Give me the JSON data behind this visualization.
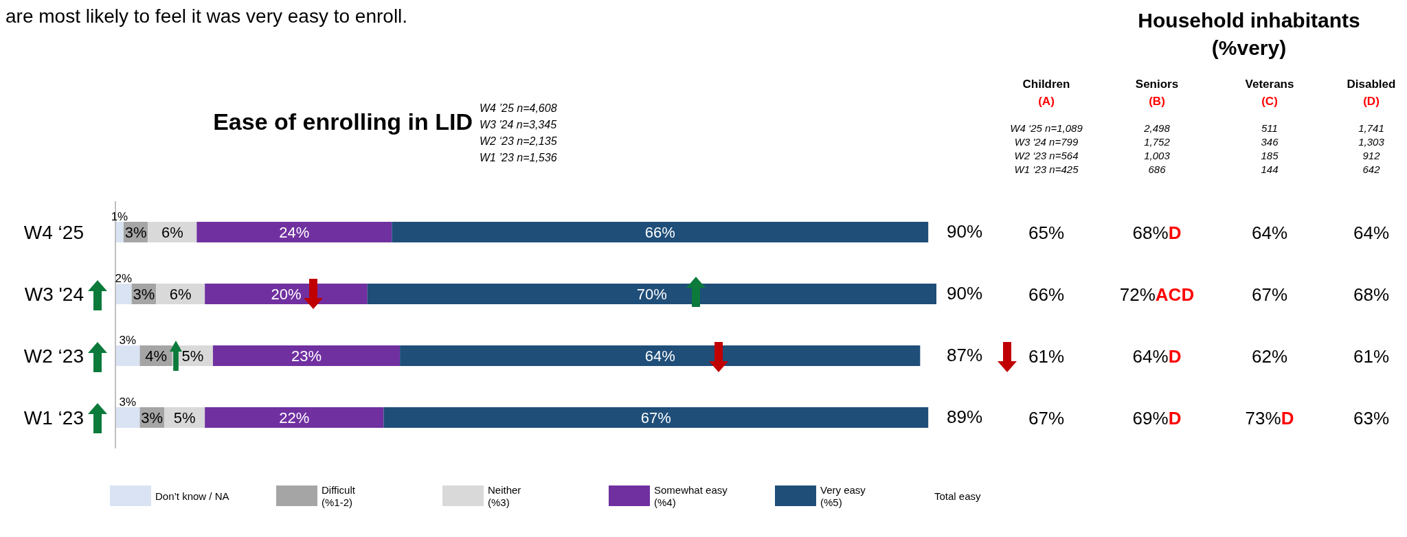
{
  "chart_data": [
    {
      "type": "bar",
      "orientation": "horizontal",
      "stacked": true,
      "title": "Ease of enrolling in LID",
      "categories": [
        "W4 ‘25",
        "W3 '24",
        "W2 ‘23",
        "W1 ‘23"
      ],
      "series": [
        {
          "name": "Don’t know / NA",
          "color": "#dae3f3",
          "values": [
            1,
            2,
            3,
            3
          ],
          "value_labels": [
            "1%",
            "2%",
            "3%",
            "3%"
          ]
        },
        {
          "name": "Difficult\n(%1-2)",
          "color": "#a5a5a5",
          "values": [
            3,
            3,
            4,
            3
          ],
          "value_labels": [
            "3%",
            "3%",
            "4%",
            "3%"
          ]
        },
        {
          "name": "Neither\n(%3)",
          "color": "#d9d9d9",
          "values": [
            6,
            6,
            5,
            5
          ],
          "value_labels": [
            "6%",
            "6%",
            "5%",
            "5%"
          ]
        },
        {
          "name": "Somewhat easy\n(%4)",
          "color": "#7030a0",
          "values": [
            24,
            20,
            23,
            22
          ],
          "value_labels": [
            "24%",
            "20%",
            "23%",
            "22%"
          ]
        },
        {
          "name": "Very easy\n(%5)",
          "color": "#1f4e79",
          "values": [
            66,
            70,
            64,
            67
          ],
          "value_labels": [
            "66%",
            "70%",
            "64%",
            "67%"
          ]
        }
      ],
      "legend": "bottom",
      "tick_labels": "y",
      "annotations": [
        "are most likely to feel it was very easy to enroll.",
        "W4 ’25 n=4,608",
        "W3 '24 n=3,345",
        "W2 ‘23 n=2,135",
        "W1 ’23 n=1,536",
        "Total easy",
        "90%",
        "90%",
        "87%",
        "89%"
      ]
    },
    {
      "type": "other",
      "title": "Household inhabitants (%very)",
      "annotations": [
        "Children",
        "Seniors",
        "Veterans",
        "Disabled",
        "(A)",
        "(B)",
        "(C)",
        "(D)",
        "W4 ‘25 n=1,089",
        "2,498",
        "511",
        "1,741",
        "W3 '24 n=799",
        "1,752",
        "346",
        "1,303",
        "W2 ‘23 n=564",
        "1,003",
        "185",
        "912",
        "W1 ‘23 n=425",
        "686",
        "144",
        "642",
        "65%",
        "68%D",
        "64%",
        "64%",
        "66%",
        "72%ACD",
        "67%",
        "68%",
        "61%",
        "64%D",
        "62%",
        "61%",
        "67%",
        "69%D",
        "73%D",
        "63%"
      ]
    }
  ]
}
